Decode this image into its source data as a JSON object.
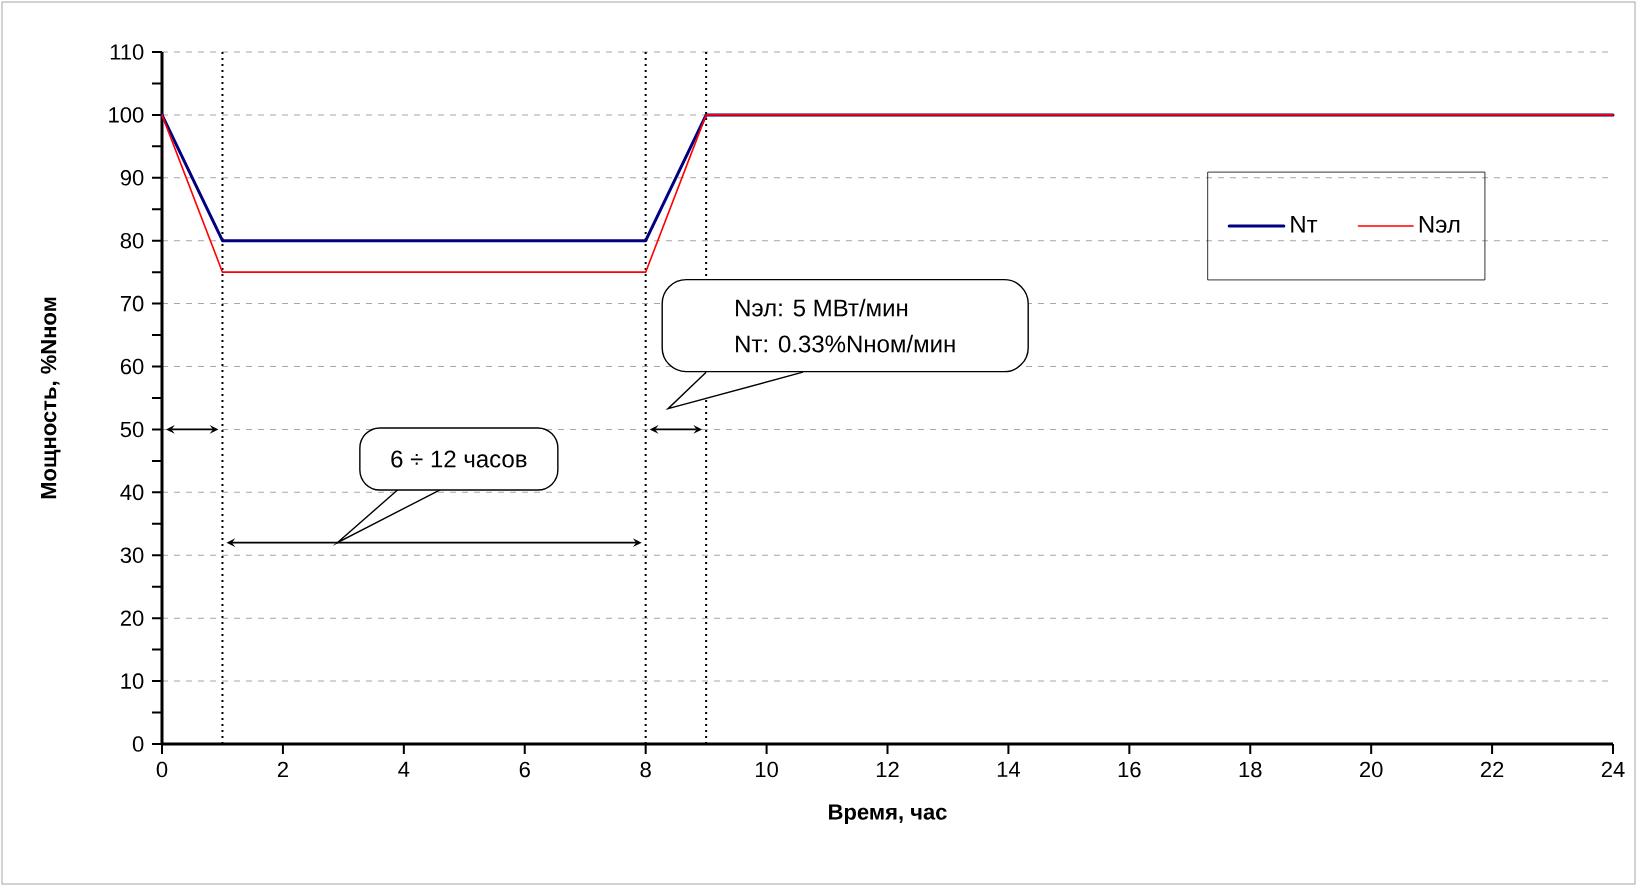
{
  "chart_data": {
    "type": "line",
    "xlabel": "Время, час",
    "ylabel": "Мощность, %Nном",
    "x": [
      0,
      1,
      8,
      9,
      24
    ],
    "series": [
      {
        "name": "Nт",
        "color": "#000080",
        "values": [
          100,
          80,
          80,
          100,
          100
        ]
      },
      {
        "name": "Nэл",
        "color": "#ff0000",
        "values": [
          100,
          75,
          75,
          100,
          100
        ]
      }
    ],
    "xlim": [
      0,
      24
    ],
    "xticks": [
      0,
      2,
      4,
      6,
      8,
      10,
      12,
      14,
      16,
      18,
      20,
      22,
      24
    ],
    "ylim": [
      0,
      110
    ],
    "yticks": [
      0,
      {
        "value": 5,
        "label": null
      },
      10,
      {
        "value": 15,
        "label": null
      },
      20,
      {
        "value": 25,
        "label": null
      },
      30,
      {
        "value": 35,
        "label": null
      },
      40,
      {
        "value": 45,
        "label": null
      },
      50,
      {
        "value": 55,
        "label": null
      },
      60,
      {
        "value": 65,
        "label": null
      },
      70,
      {
        "value": 75,
        "label": null
      },
      80,
      {
        "value": 85,
        "label": null
      },
      90,
      {
        "value": 95,
        "label": null
      },
      100,
      {
        "value": 105,
        "label": null
      },
      110
    ],
    "ref_lines": [
      {
        "axis": "x",
        "value": 1,
        "color": "#000000",
        "line_style": "dotted"
      },
      {
        "axis": "x",
        "value": 8,
        "color": "#000000",
        "line_style": "dotted"
      },
      {
        "axis": "x",
        "value": 9,
        "color": "#000000",
        "line_style": "dotted"
      }
    ],
    "annotations": [
      "Nэл: 5 МВт/мин",
      "Nт: 0.33%Nном/мин",
      "6 ÷ 12 часов"
    ],
    "grid": "y",
    "legend": "top right",
    "marker": "none",
    "line_style": "solid"
  }
}
